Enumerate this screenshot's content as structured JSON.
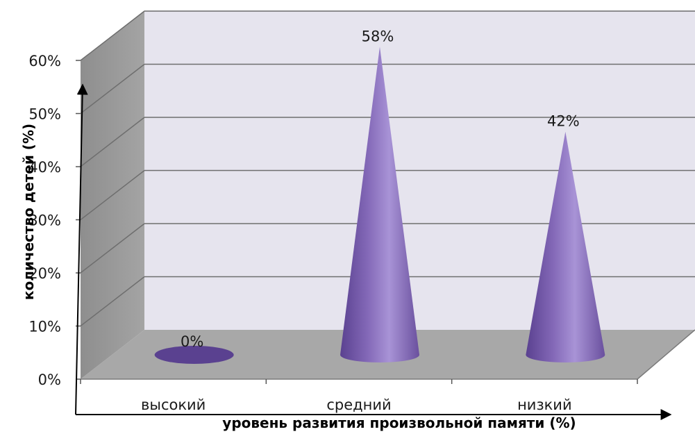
{
  "chart_data": {
    "type": "bar",
    "style": "3d-cone",
    "categories": [
      "высокий",
      "средний",
      "низкий"
    ],
    "values": [
      0,
      58,
      42
    ],
    "value_format": "percent",
    "data_labels": [
      "0%",
      "58%",
      "42%"
    ],
    "ylim": [
      0,
      60
    ],
    "yticks": [
      0,
      10,
      20,
      30,
      40,
      50,
      60
    ],
    "ytick_labels": [
      "0%",
      "10%",
      "20%",
      "30%",
      "40%",
      "50%",
      "60%"
    ],
    "xlabel": "уровень развития произвольной памяти (%)",
    "ylabel": "количество детей  (%)",
    "grid": true,
    "legend": "none",
    "colors": {
      "cone_light": "#a893d6",
      "cone_mid": "#8469b8",
      "cone_dark": "#5a4190",
      "back_wall": "#e6e4ee",
      "side_wall": "#9e9e9e",
      "floor": "#a8a8a8",
      "grid": "#6e6e6e"
    }
  }
}
